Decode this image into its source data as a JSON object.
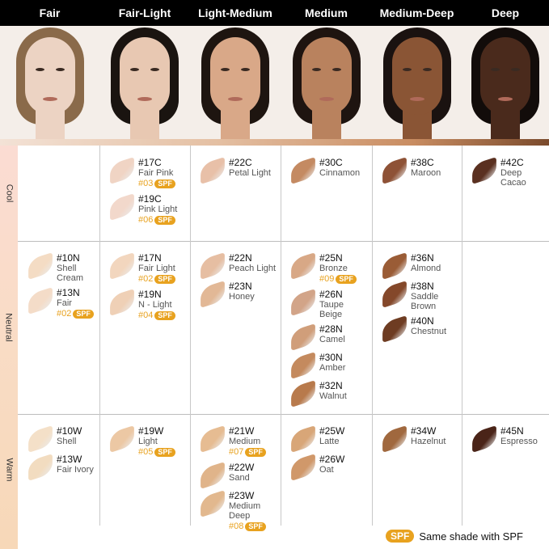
{
  "columns": [
    "Fair",
    "Fair-Light",
    "Light-Medium",
    "Medium",
    "Medium-Deep",
    "Deep"
  ],
  "face_colors": [
    "#ecd3c3",
    "#e8c8b2",
    "#d9a888",
    "#b9825e",
    "#8a5535",
    "#4a2a1c"
  ],
  "hair_colors": [
    "#8a6a4a",
    "#1a1410",
    "#1e1510",
    "#1e1410",
    "#1a1210",
    "#120c0a"
  ],
  "rows": [
    "Cool",
    "Neutral",
    "Warm"
  ],
  "spf_badge": "SPF",
  "legend": {
    "badge": "SPF",
    "text": "Same shade with SPF"
  },
  "accent": "#e8a21f",
  "grid": [
    [
      [],
      [
        {
          "code": "#17C",
          "name": "Fair Pink",
          "spf": "#03",
          "color": "#f0d4c4"
        },
        {
          "code": "#19C",
          "name": "Pink Light",
          "spf": "#06",
          "color": "#f2d8cb"
        }
      ],
      [
        {
          "code": "#22C",
          "name": "Petal Light",
          "color": "#e8c0a8"
        }
      ],
      [
        {
          "code": "#30C",
          "name": "Cinnamon",
          "color": "#c48a62"
        }
      ],
      [
        {
          "code": "#38C",
          "name": "Maroon",
          "color": "#8e5236"
        }
      ],
      [
        {
          "code": "#42C",
          "name": "Deep Cacao",
          "color": "#5a3020"
        }
      ]
    ],
    [
      [
        {
          "code": "#10N",
          "name": "Shell Cream",
          "color": "#f4dcc4"
        },
        {
          "code": "#13N",
          "name": "Fair",
          "spf": "#02",
          "color": "#f4dcc8"
        }
      ],
      [
        {
          "code": "#17N",
          "name": "Fair Light",
          "spf": "#02",
          "color": "#f2d6be"
        },
        {
          "code": "#19N",
          "name": "N - Light",
          "spf": "#04",
          "color": "#efd0b6"
        }
      ],
      [
        {
          "code": "#22N",
          "name": "Peach Light",
          "color": "#e6bea2"
        },
        {
          "code": "#23N",
          "name": "Honey",
          "color": "#e2b896"
        }
      ],
      [
        {
          "code": "#25N",
          "name": "Bronze",
          "spf": "#09",
          "color": "#d8a886"
        },
        {
          "code": "#26N",
          "name": "Taupe Beige",
          "color": "#d2a488"
        },
        {
          "code": "#28N",
          "name": "Camel",
          "color": "#d09e7a"
        },
        {
          "code": "#30N",
          "name": "Amber",
          "color": "#c48a5e"
        },
        {
          "code": "#32N",
          "name": "Walnut",
          "color": "#b87a4c"
        }
      ],
      [
        {
          "code": "#36N",
          "name": "Almond",
          "color": "#9a5c36"
        },
        {
          "code": "#38N",
          "name": "Saddle Brown",
          "color": "#84482a"
        },
        {
          "code": "#40N",
          "name": "Chestnut",
          "color": "#6e3c22"
        }
      ],
      []
    ],
    [
      [
        {
          "code": "#10W",
          "name": "Shell",
          "color": "#f4e0c8"
        },
        {
          "code": "#13W",
          "name": "Fair Ivory",
          "color": "#f2dcc0"
        }
      ],
      [
        {
          "code": "#19W",
          "name": "Light",
          "spf": "#05",
          "color": "#ecc8a4"
        }
      ],
      [
        {
          "code": "#21W",
          "name": "Medium",
          "spf": "#07",
          "color": "#e6bc92"
        },
        {
          "code": "#22W",
          "name": "Sand",
          "color": "#e0b48a"
        },
        {
          "code": "#23W",
          "name": "Medium Deep",
          "spf": "#08",
          "color": "#e2b88e"
        }
      ],
      [
        {
          "code": "#25W",
          "name": "Latte",
          "color": "#d8a678"
        },
        {
          "code": "#26W",
          "name": "Oat",
          "color": "#d0986a"
        }
      ],
      [
        {
          "code": "#34W",
          "name": "Hazelnut",
          "color": "#a0683e"
        }
      ],
      [
        {
          "code": "#45N",
          "name": "Espresso",
          "color": "#4a2418"
        }
      ]
    ]
  ]
}
